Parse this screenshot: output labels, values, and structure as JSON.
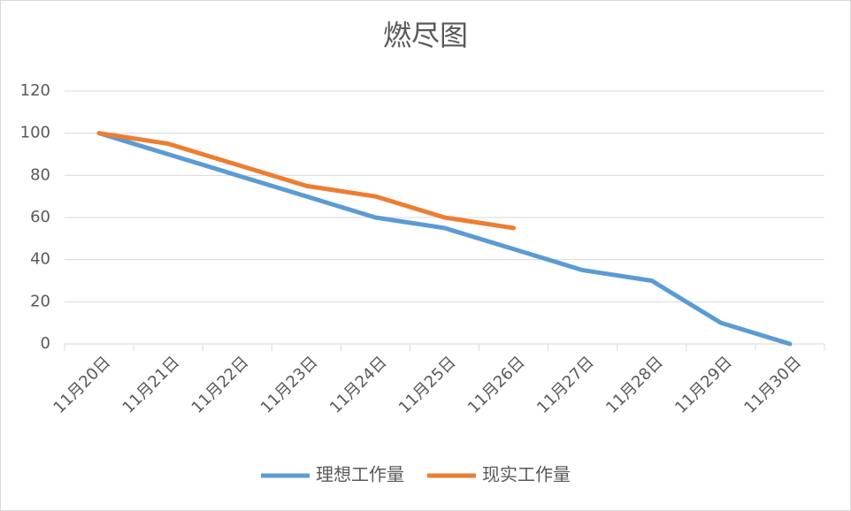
{
  "chart_data": {
    "type": "line",
    "title": "燃尽图",
    "categories": [
      "11月20日",
      "11月21日",
      "11月22日",
      "11月23日",
      "11月24日",
      "11月25日",
      "11月26日",
      "11月27日",
      "11月28日",
      "11月29日",
      "11月30日"
    ],
    "series": [
      {
        "name": "理想工作量",
        "color": "#5b9bd5",
        "values": [
          100,
          90,
          80,
          70,
          60,
          55,
          45,
          35,
          30,
          10,
          0
        ]
      },
      {
        "name": "现实工作量",
        "color": "#ed7d31",
        "values": [
          100,
          95,
          85,
          75,
          70,
          60,
          55,
          null,
          null,
          null,
          null
        ]
      }
    ],
    "ylim": [
      0,
      120
    ],
    "yticks": [
      0,
      20,
      40,
      60,
      80,
      100,
      120
    ],
    "grid": true,
    "legend": "bottom"
  }
}
